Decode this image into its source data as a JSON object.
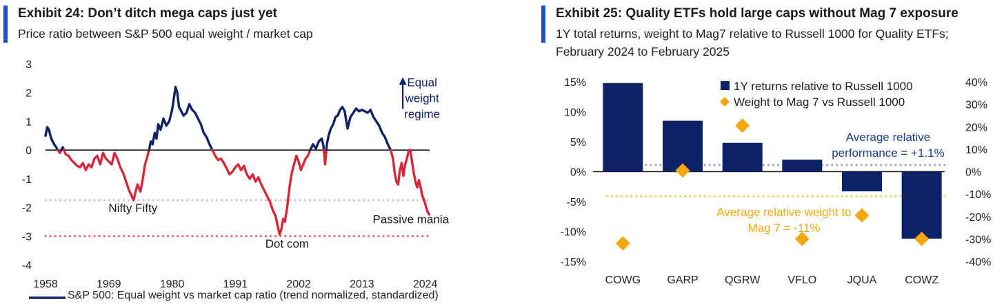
{
  "colors": {
    "accent": "#1F4EC9",
    "navy": "#0E2267",
    "red": "#D62638",
    "pink_dots": "#F2B8BE",
    "red_dots": "#E0707E",
    "blue_dots": "#95A8D0",
    "gold": "#F4A80C",
    "gold_dots": "#F6D260"
  },
  "left": {
    "title": "Exhibit 24: Don’t ditch mega caps just yet",
    "subtitle": "Price ratio between S&P 500 equal weight / market cap",
    "chart_data": {
      "type": "line",
      "title": "Exhibit 24: Don’t ditch mega caps just yet",
      "subtitle": "Price ratio between S&P 500 equal weight / market cap",
      "xlabel": "",
      "ylabel": "",
      "xlim": [
        1958,
        2025
      ],
      "ylim": [
        -4,
        3
      ],
      "y_ticks": [
        "3",
        "2",
        "1",
        "0",
        "-1",
        "-2",
        "-3",
        "-4"
      ],
      "x_ticks": [
        "1958",
        "1969",
        "1980",
        "1991",
        "2002",
        "2013",
        "2024"
      ],
      "legend": "S&P 500: Equal weight vs market cap ratio (trend normalized, standardized)",
      "legend_position": "bottom",
      "series": [
        {
          "name": "S&P 500: Equal weight vs market cap ratio (trend normalized, standardized)",
          "color_rule": "blue when value > 0 (equal weight regime), red when value < 0",
          "points": [
            [
              1958.0,
              0.5
            ],
            [
              1958.3,
              0.8
            ],
            [
              1958.6,
              0.7
            ],
            [
              1959.0,
              0.4
            ],
            [
              1959.5,
              0.2
            ],
            [
              1960.0,
              0.05
            ],
            [
              1960.5,
              -0.1
            ],
            [
              1961.0,
              0.1
            ],
            [
              1961.5,
              -0.15
            ],
            [
              1962.0,
              -0.2
            ],
            [
              1962.5,
              -0.35
            ],
            [
              1963.0,
              -0.45
            ],
            [
              1963.5,
              -0.55
            ],
            [
              1964.0,
              -0.6
            ],
            [
              1964.5,
              -0.45
            ],
            [
              1965.0,
              -0.7
            ],
            [
              1965.5,
              -0.5
            ],
            [
              1966.0,
              -0.6
            ],
            [
              1966.5,
              -0.3
            ],
            [
              1967.0,
              -0.2
            ],
            [
              1967.5,
              -0.5
            ],
            [
              1968.0,
              -0.1
            ],
            [
              1968.5,
              -0.3
            ],
            [
              1969.0,
              -0.4
            ],
            [
              1969.5,
              -0.5
            ],
            [
              1970.0,
              -0.1
            ],
            [
              1970.5,
              -0.3
            ],
            [
              1971.0,
              -0.6
            ],
            [
              1971.5,
              -0.8
            ],
            [
              1972.0,
              -1.1
            ],
            [
              1972.5,
              -1.4
            ],
            [
              1973.0,
              -1.6
            ],
            [
              1973.3,
              -1.75
            ],
            [
              1973.6,
              -1.5
            ],
            [
              1974.0,
              -1.2
            ],
            [
              1974.5,
              -1.45
            ],
            [
              1975.0,
              -0.9
            ],
            [
              1975.3,
              -0.5
            ],
            [
              1975.6,
              -0.3
            ],
            [
              1976.0,
              0.0
            ],
            [
              1976.3,
              0.3
            ],
            [
              1976.6,
              0.2
            ],
            [
              1977.0,
              0.6
            ],
            [
              1977.3,
              0.4
            ],
            [
              1977.6,
              0.9
            ],
            [
              1978.0,
              0.7
            ],
            [
              1978.5,
              1.1
            ],
            [
              1979.0,
              0.85
            ],
            [
              1979.5,
              1.0
            ],
            [
              1980.0,
              1.4
            ],
            [
              1980.3,
              1.8
            ],
            [
              1980.6,
              2.2
            ],
            [
              1980.9,
              2.0
            ],
            [
              1981.2,
              1.5
            ],
            [
              1981.6,
              1.35
            ],
            [
              1982.0,
              1.2
            ],
            [
              1982.5,
              1.3
            ],
            [
              1983.0,
              1.6
            ],
            [
              1983.5,
              1.4
            ],
            [
              1984.0,
              1.3
            ],
            [
              1984.5,
              1.1
            ],
            [
              1985.0,
              0.9
            ],
            [
              1985.5,
              0.6
            ],
            [
              1986.0,
              0.45
            ],
            [
              1986.5,
              0.2
            ],
            [
              1987.0,
              0.0
            ],
            [
              1987.5,
              -0.2
            ],
            [
              1988.0,
              -0.35
            ],
            [
              1988.5,
              -0.3
            ],
            [
              1989.0,
              -0.45
            ],
            [
              1989.5,
              -0.65
            ],
            [
              1990.0,
              -0.85
            ],
            [
              1990.5,
              -0.75
            ],
            [
              1991.0,
              -0.6
            ],
            [
              1991.5,
              -0.5
            ],
            [
              1992.0,
              -0.7
            ],
            [
              1992.5,
              -0.55
            ],
            [
              1993.0,
              -0.85
            ],
            [
              1993.5,
              -1.0
            ],
            [
              1994.0,
              -0.85
            ],
            [
              1994.5,
              -1.1
            ],
            [
              1995.0,
              -0.95
            ],
            [
              1995.5,
              -1.2
            ],
            [
              1996.0,
              -1.4
            ],
            [
              1996.5,
              -1.6
            ],
            [
              1997.0,
              -1.8
            ],
            [
              1997.5,
              -2.1
            ],
            [
              1998.0,
              -2.3
            ],
            [
              1998.4,
              -2.7
            ],
            [
              1998.7,
              -2.95
            ],
            [
              1999.0,
              -2.75
            ],
            [
              1999.3,
              -2.4
            ],
            [
              1999.6,
              -2.5
            ],
            [
              2000.0,
              -2.0
            ],
            [
              2000.4,
              -1.3
            ],
            [
              2000.8,
              -0.8
            ],
            [
              2001.2,
              -0.5
            ],
            [
              2001.6,
              -0.2
            ],
            [
              2002.0,
              -0.4
            ],
            [
              2002.4,
              -0.7
            ],
            [
              2002.8,
              -0.5
            ],
            [
              2003.2,
              -0.3
            ],
            [
              2003.6,
              -0.2
            ],
            [
              2004.0,
              0.0
            ],
            [
              2004.5,
              0.2
            ],
            [
              2005.0,
              0.05
            ],
            [
              2005.5,
              0.3
            ],
            [
              2006.0,
              0.4
            ],
            [
              2006.3,
              0.15
            ],
            [
              2006.6,
              -0.5
            ],
            [
              2006.9,
              0.2
            ],
            [
              2007.2,
              0.5
            ],
            [
              2007.6,
              0.75
            ],
            [
              2008.0,
              0.9
            ],
            [
              2008.4,
              1.15
            ],
            [
              2008.8,
              1.2
            ],
            [
              2009.2,
              1.4
            ],
            [
              2009.6,
              1.5
            ],
            [
              2010.0,
              1.35
            ],
            [
              2010.5,
              0.75
            ],
            [
              2011.0,
              1.15
            ],
            [
              2011.5,
              1.3
            ],
            [
              2012.0,
              1.45
            ],
            [
              2012.5,
              1.35
            ],
            [
              2013.0,
              1.4
            ],
            [
              2013.5,
              1.35
            ],
            [
              2014.0,
              1.3
            ],
            [
              2014.5,
              1.4
            ],
            [
              2015.0,
              1.15
            ],
            [
              2015.5,
              1.0
            ],
            [
              2016.0,
              0.85
            ],
            [
              2016.5,
              0.6
            ],
            [
              2017.0,
              0.45
            ],
            [
              2017.5,
              0.2
            ],
            [
              2018.0,
              0.0
            ],
            [
              2018.4,
              -0.3
            ],
            [
              2018.7,
              -0.8
            ],
            [
              2019.0,
              -1.1
            ],
            [
              2019.3,
              -1.2
            ],
            [
              2019.6,
              -0.7
            ],
            [
              2019.9,
              -0.45
            ],
            [
              2020.2,
              -0.9
            ],
            [
              2020.5,
              -0.5
            ],
            [
              2020.8,
              -0.3
            ],
            [
              2021.1,
              -0.05
            ],
            [
              2021.4,
              0.0
            ],
            [
              2021.7,
              -0.4
            ],
            [
              2022.0,
              -0.8
            ],
            [
              2022.3,
              -1.1
            ],
            [
              2022.6,
              -1.3
            ],
            [
              2022.9,
              -1.05
            ],
            [
              2023.2,
              -1.3
            ],
            [
              2023.5,
              -1.6
            ],
            [
              2023.8,
              -1.75
            ],
            [
              2024.1,
              -1.95
            ],
            [
              2024.4,
              -2.15
            ],
            [
              2024.7,
              -2.25
            ]
          ]
        }
      ],
      "reference_lines": [
        {
          "y": 0,
          "style": "solid",
          "color": "#111111"
        },
        {
          "y": -1.75,
          "style": "dotted",
          "color": "#F2B8BE"
        },
        {
          "y": -3.0,
          "style": "dotted",
          "color": "#E0707E"
        }
      ],
      "annotations": [
        {
          "text": "Equal weight regime",
          "lines": [
            "Equal",
            "weight",
            "regime"
          ],
          "color": "#0E2267",
          "x": 2022.5,
          "y": 2.2,
          "arrow": "up"
        },
        {
          "text": "Nifty Fifty",
          "x": 1973.2,
          "y": -2.15
        },
        {
          "text": "Dot com",
          "x": 2000.0,
          "y": -3.4
        },
        {
          "text": "Passive mania",
          "x": 2021.5,
          "y": -2.55
        }
      ]
    }
  },
  "right": {
    "title": "Exhibit 25: Quality ETFs hold large caps without Mag 7 exposure",
    "subtitle_lines": [
      "1Y total returns, weight to Mag7 relative to Russell 1000 for Quality ETFs;",
      "February 2024 to February 2025"
    ],
    "chart_data": {
      "type": "bar",
      "title": "Exhibit 25: Quality ETFs hold large caps without Mag 7 exposure",
      "subtitle": "1Y total returns, weight to Mag7 relative to Russell 1000 for Quality ETFs; February 2024 to February 2025",
      "categories": [
        "COWG",
        "GARP",
        "QGRW",
        "VFLO",
        "JQUA",
        "COWZ"
      ],
      "series": [
        {
          "name": "1Y returns relative to Russell 1000",
          "type": "bar",
          "axis": "left",
          "color": "#0E2267",
          "values": [
            14.8,
            8.5,
            4.8,
            2.0,
            -3.3,
            -11.2
          ]
        },
        {
          "name": "Weight to Mag 7 vs Russell 1000",
          "type": "scatter",
          "marker": "diamond",
          "axis": "right",
          "color": "#F4A80C",
          "values": [
            -32.0,
            0.5,
            20.5,
            -30.0,
            -19.5,
            -30.0
          ]
        }
      ],
      "ylim_left": [
        -15,
        15
      ],
      "ylim_right": [
        -40,
        40
      ],
      "y_left_ticks": [
        "15%",
        "10%",
        "5%",
        "0%",
        "-5%",
        "-10%",
        "-15%"
      ],
      "y_right_ticks": [
        "40%",
        "30%",
        "20%",
        "10%",
        "0%",
        "-10%",
        "-20%",
        "-30%",
        "-40%"
      ],
      "legend_position": "top-center",
      "reference_lines": [
        {
          "name": "Average relative performance",
          "y": 1.1,
          "axis": "left",
          "style": "dotted",
          "color": "#95A8D0"
        },
        {
          "name": "Average relative weight to Mag 7",
          "y": -11,
          "axis": "right",
          "style": "dotted",
          "color": "#F6D260"
        }
      ],
      "annotations": [
        {
          "text": "Average relative performance = +1.1%",
          "lines": [
            "Average relative",
            "performance = +1.1%"
          ],
          "color": "#1F3A8A"
        },
        {
          "text": "Average relative weight to Mag 7 = -11%",
          "lines": [
            "Average relative weight to",
            "Mag 7 = -11%"
          ],
          "color": "#F4A80C"
        }
      ]
    }
  }
}
